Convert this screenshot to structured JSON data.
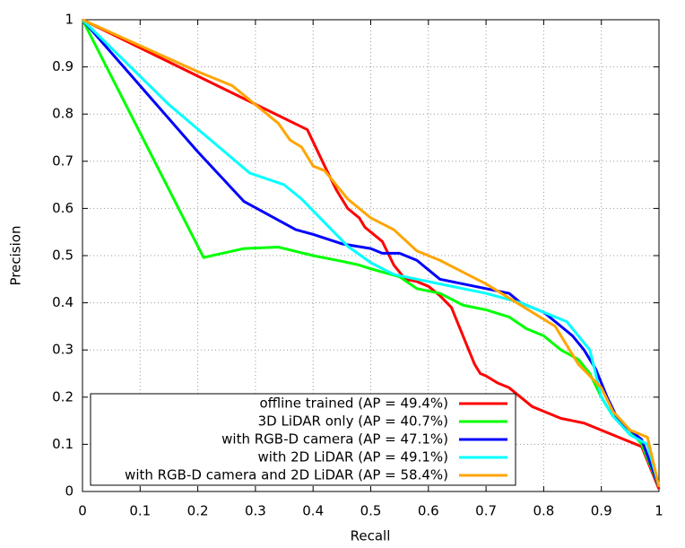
{
  "chart_data": {
    "type": "line",
    "xlabel": "Recall",
    "ylabel": "Precision",
    "xlim": [
      0,
      1
    ],
    "ylim": [
      0,
      1
    ],
    "xticks": [
      0,
      0.1,
      0.2,
      0.3,
      0.4,
      0.5,
      0.6,
      0.7,
      0.8,
      0.9,
      1
    ],
    "yticks": [
      0,
      0.1,
      0.2,
      0.3,
      0.4,
      0.5,
      0.6,
      0.7,
      0.8,
      0.9,
      1
    ],
    "grid": true,
    "legend": "bottom-left",
    "series": [
      {
        "name": "offline trained (AP = 49.4%)",
        "color": "#ff0000",
        "x": [
          0,
          0.39,
          0.42,
          0.44,
          0.46,
          0.48,
          0.49,
          0.5,
          0.52,
          0.54,
          0.56,
          0.58,
          0.6,
          0.62,
          0.64,
          0.65,
          0.66,
          0.67,
          0.68,
          0.69,
          0.7,
          0.72,
          0.74,
          0.76,
          0.78,
          0.8,
          0.83,
          0.87,
          0.9,
          0.96,
          0.97,
          1
        ],
        "values": [
          1,
          0.767,
          0.69,
          0.64,
          0.6,
          0.58,
          0.56,
          0.55,
          0.53,
          0.48,
          0.45,
          0.445,
          0.435,
          0.415,
          0.39,
          0.36,
          0.33,
          0.3,
          0.27,
          0.25,
          0.245,
          0.23,
          0.22,
          0.2,
          0.18,
          0.17,
          0.155,
          0.145,
          0.13,
          0.1,
          0.095,
          0.005
        ]
      },
      {
        "name": "3D LiDAR only (AP = 40.7%)",
        "color": "#00ff00",
        "x": [
          0,
          0.21,
          0.28,
          0.34,
          0.4,
          0.45,
          0.48,
          0.5,
          0.55,
          0.58,
          0.62,
          0.66,
          0.7,
          0.74,
          0.77,
          0.8,
          0.83,
          0.86,
          0.88,
          0.9,
          0.92,
          0.95,
          0.97,
          1
        ],
        "values": [
          1,
          0.496,
          0.515,
          0.518,
          0.5,
          0.488,
          0.48,
          0.472,
          0.455,
          0.43,
          0.42,
          0.395,
          0.385,
          0.37,
          0.345,
          0.33,
          0.3,
          0.28,
          0.25,
          0.2,
          0.16,
          0.13,
          0.1,
          0.01
        ]
      },
      {
        "name": "with RGB-D camera (AP = 47.1%)",
        "color": "#0000ff",
        "x": [
          0,
          0.2,
          0.28,
          0.37,
          0.4,
          0.45,
          0.5,
          0.52,
          0.55,
          0.58,
          0.6,
          0.62,
          0.66,
          0.7,
          0.74,
          0.76,
          0.8,
          0.83,
          0.85,
          0.87,
          0.89,
          0.91,
          0.93,
          0.97,
          1
        ],
        "values": [
          1,
          0.72,
          0.615,
          0.555,
          0.545,
          0.525,
          0.515,
          0.505,
          0.505,
          0.49,
          0.47,
          0.45,
          0.44,
          0.43,
          0.42,
          0.4,
          0.38,
          0.35,
          0.33,
          0.3,
          0.26,
          0.2,
          0.15,
          0.11,
          0.01
        ]
      },
      {
        "name": "with 2D LiDAR (AP = 49.1%)",
        "color": "#00ffff",
        "x": [
          0,
          0.15,
          0.29,
          0.35,
          0.38,
          0.42,
          0.46,
          0.5,
          0.54,
          0.6,
          0.66,
          0.7,
          0.76,
          0.8,
          0.84,
          0.88,
          0.9,
          0.92,
          0.95,
          0.98,
          1
        ],
        "values": [
          1,
          0.82,
          0.675,
          0.65,
          0.62,
          0.57,
          0.52,
          0.485,
          0.46,
          0.445,
          0.43,
          0.42,
          0.4,
          0.38,
          0.36,
          0.3,
          0.2,
          0.16,
          0.12,
          0.1,
          0.01
        ]
      },
      {
        "name": "with RGB-D camera and 2D LiDAR (AP = 58.4%)",
        "color": "#ffa500",
        "x": [
          0,
          0.2,
          0.26,
          0.3,
          0.34,
          0.36,
          0.38,
          0.4,
          0.42,
          0.46,
          0.5,
          0.54,
          0.58,
          0.62,
          0.66,
          0.7,
          0.74,
          0.78,
          0.82,
          0.86,
          0.9,
          0.92,
          0.95,
          0.98,
          1
        ],
        "values": [
          1,
          0.89,
          0.86,
          0.82,
          0.78,
          0.745,
          0.73,
          0.69,
          0.68,
          0.62,
          0.58,
          0.555,
          0.51,
          0.49,
          0.465,
          0.44,
          0.41,
          0.38,
          0.35,
          0.27,
          0.22,
          0.17,
          0.13,
          0.115,
          0.01
        ]
      }
    ]
  }
}
